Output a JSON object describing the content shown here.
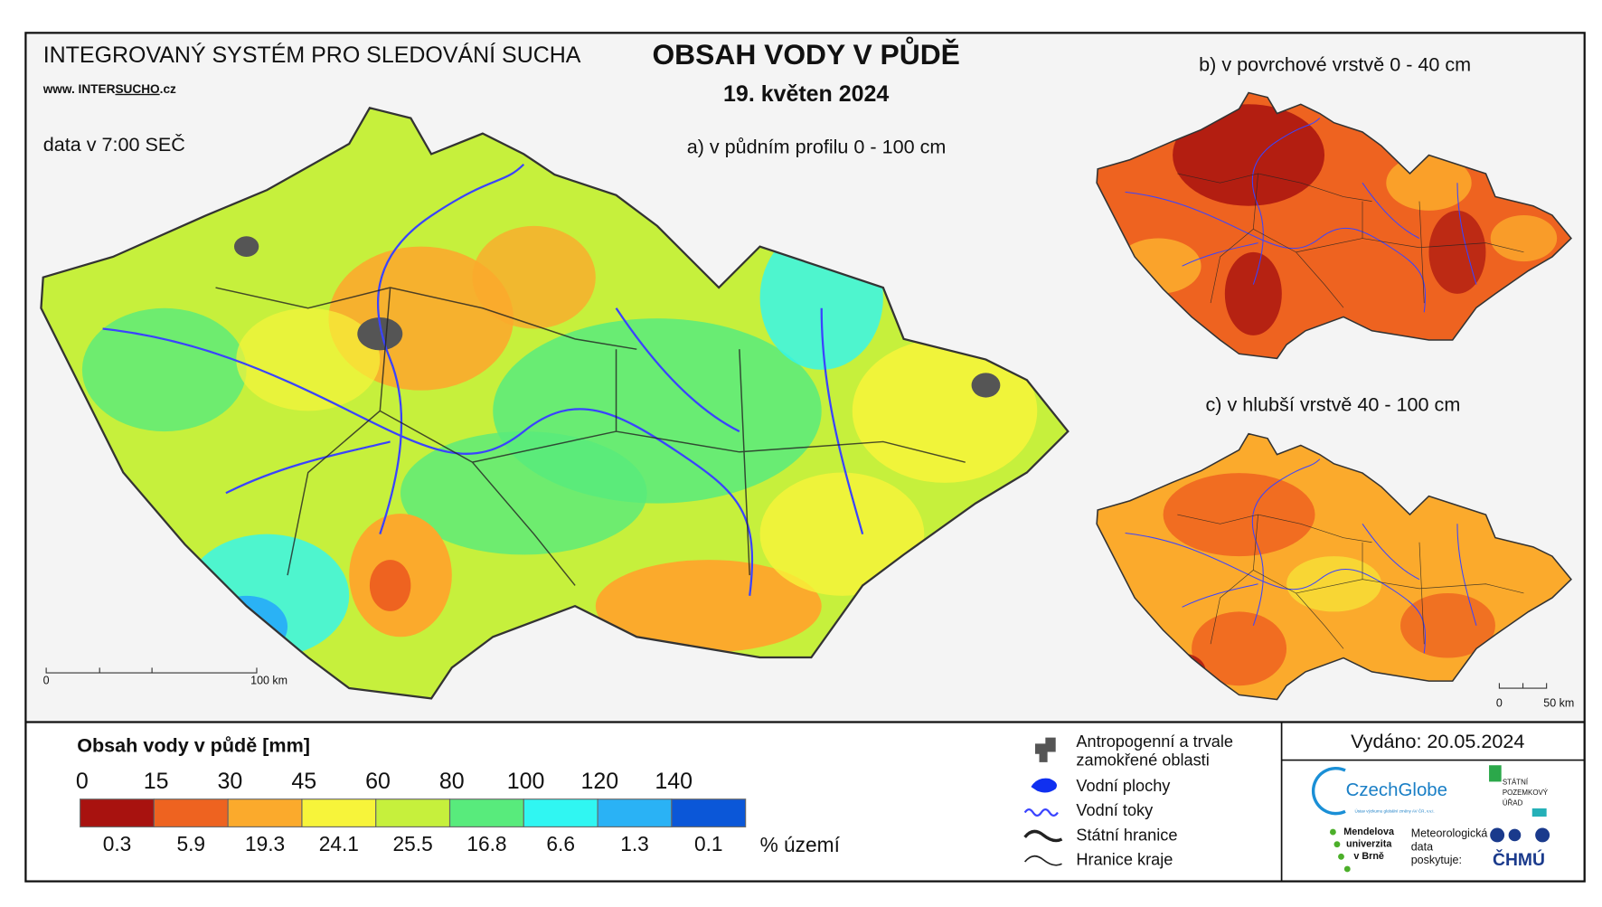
{
  "header": {
    "system": "INTEGROVANÝ SYSTÉM PRO SLEDOVÁNÍ SUCHA",
    "website": [
      "www. INTER",
      "SUCHO",
      ".cz"
    ],
    "data_time": "data v 7:00 SEČ",
    "title": "OBSAH VODY V PŮDĚ",
    "date": "19. květen 2024"
  },
  "maps": [
    {
      "label": "a) v půdním profilu 0 - 100 cm",
      "scale": [
        "0",
        "100 km"
      ]
    },
    {
      "label": "b) v povrchové vrstvě 0 - 40 cm"
    },
    {
      "label": "c) v hlubší vrstvě 40 - 100 cm",
      "scale": [
        "0",
        "50 km"
      ]
    }
  ],
  "legend": {
    "title": "Obsah vody v půdě  [mm]",
    "share_unit": "% území",
    "classes": [
      {
        "from": 0,
        "color": "#a8120f",
        "share": 0.3
      },
      {
        "from": 15,
        "color": "#ee6320",
        "share": 5.9
      },
      {
        "from": 30,
        "color": "#fbaa2c",
        "share": 19.3
      },
      {
        "from": 45,
        "color": "#f7f43a",
        "share": 24.1
      },
      {
        "from": 60,
        "color": "#c6f03c",
        "share": 25.5
      },
      {
        "from": 80,
        "color": "#58eb7c",
        "share": 16.8
      },
      {
        "from": 100,
        "color": "#30f6f2",
        "share": 6.6
      },
      {
        "from": 120,
        "color": "#2ab2f5",
        "share": 1.3
      },
      {
        "from": 140,
        "color": "#0b57d8",
        "share": 0.1
      }
    ]
  },
  "symbols": [
    {
      "label": [
        "Antropogenní a trvale",
        "zamokřené oblasti"
      ]
    },
    {
      "label": [
        "Vodní plochy"
      ]
    },
    {
      "label": [
        "Vodní toky"
      ]
    },
    {
      "label": [
        "Státní hranice"
      ]
    },
    {
      "label": [
        "Hranice kraje"
      ]
    }
  ],
  "issued": "Vydáno: 20.05.2024",
  "logos": {
    "czechglobe": "CzechGlobe",
    "czechglobe_sub": "Ústav výzkumu globální změny AV ČR, v.v.i.",
    "spu": [
      "STÁTNÍ",
      "POZEMKOVÝ",
      "ÚŘAD"
    ],
    "mendelu": [
      "Mendelova",
      "univerzita",
      "v Brně"
    ],
    "provider": [
      "Meteorologická",
      "data",
      "poskytuje:"
    ],
    "chmu": "ČHMÚ"
  }
}
